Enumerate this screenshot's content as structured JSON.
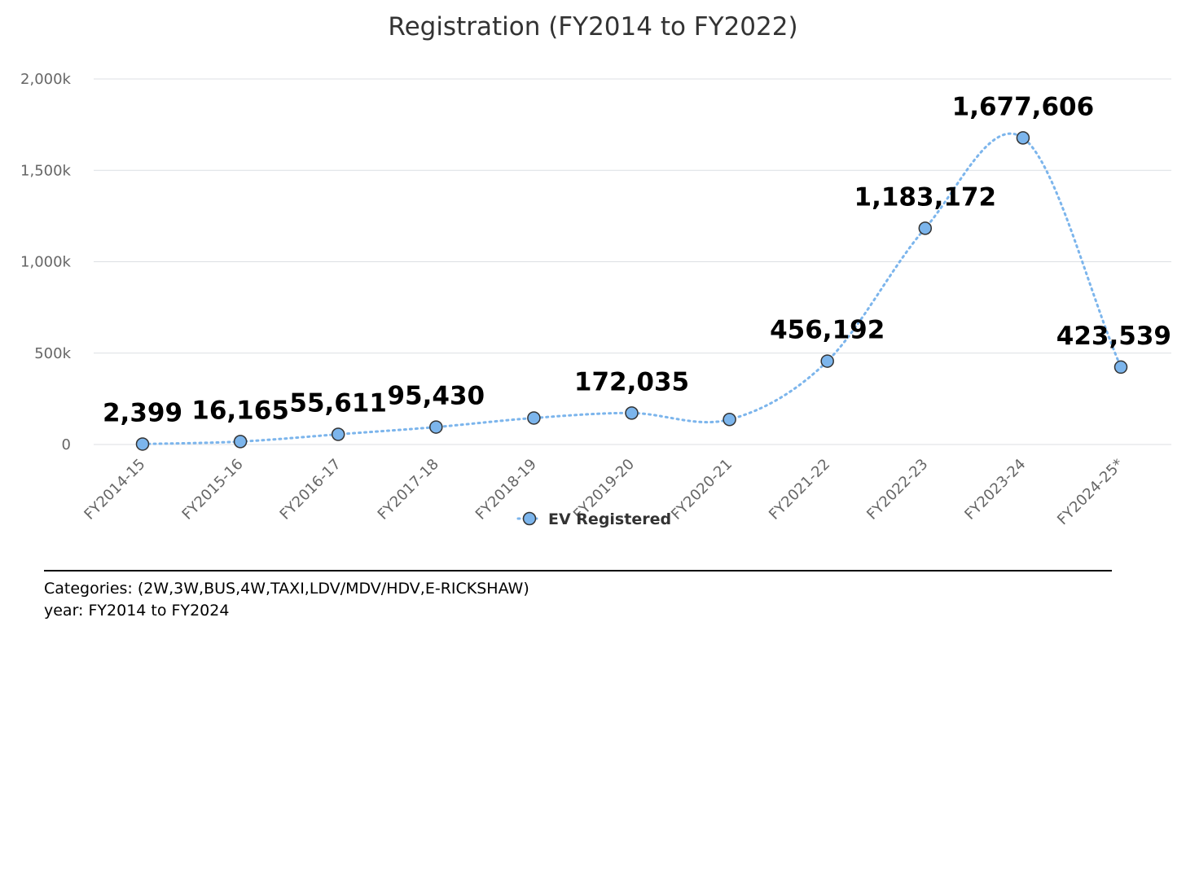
{
  "chart_data": {
    "type": "line",
    "title": "Registration (FY2014 to FY2022)",
    "categories": [
      "FY2014-15",
      "FY2015-16",
      "FY2016-17",
      "FY2017-18",
      "FY2018-19",
      "FY2019-20",
      "FY2020-21",
      "FY2021-22",
      "FY2022-23",
      "FY2023-24",
      "FY2024-25*"
    ],
    "series": [
      {
        "name": "EV Registered",
        "color": "#7cb5ec",
        "values": [
          2399,
          16165,
          55611,
          95430,
          145000,
          172035,
          137000,
          456192,
          1183172,
          1677606,
          423539
        ],
        "data_labels": [
          "2,399",
          "16,165",
          "55,611",
          "95,430",
          "",
          "172,035",
          "",
          "456,192",
          "1,183,172",
          "1,677,606",
          "423,539"
        ]
      }
    ],
    "y_ticks": [
      {
        "value": 0,
        "label": "0"
      },
      {
        "value": 500000,
        "label": "500k"
      },
      {
        "value": 1000000,
        "label": "1,000k"
      },
      {
        "value": 1500000,
        "label": "1,500k"
      },
      {
        "value": 2000000,
        "label": "2,000k"
      }
    ],
    "ylim": [
      0,
      2000000
    ],
    "grid": true,
    "legend_position": "bottom-center",
    "line_style": "dotted-spline"
  },
  "footer": {
    "categories_line": "Categories: (2W,3W,BUS,4W,TAXI,LDV/MDV/HDV,E-RICKSHAW)",
    "year_line": "year: FY2014 to FY2024"
  }
}
